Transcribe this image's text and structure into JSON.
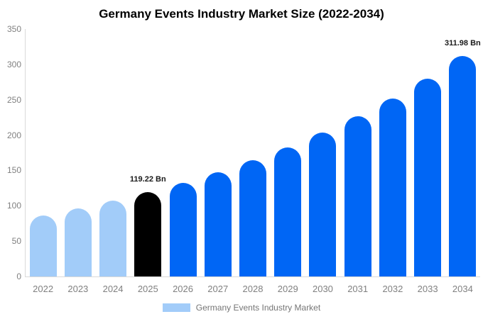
{
  "chart_data": {
    "type": "bar",
    "title": "Germany Events Industry Market Size (2022-2034)",
    "xlabel": "",
    "ylabel": "",
    "unit": "Bn",
    "categories": [
      "2022",
      "2023",
      "2024",
      "2025",
      "2026",
      "2027",
      "2028",
      "2029",
      "2030",
      "2031",
      "2032",
      "2033",
      "2034"
    ],
    "values": [
      86.5,
      96.3,
      107.1,
      119.22,
      132.7,
      147.7,
      164.3,
      182.8,
      203.4,
      226.4,
      251.9,
      280.3,
      311.98
    ],
    "series_name": "Germany Events Industry Market",
    "ylim": [
      0,
      350
    ],
    "yticks": [
      0,
      50,
      100,
      150,
      200,
      250,
      300,
      350
    ],
    "grid": false,
    "bar_colors": [
      "#a2ccf9",
      "#a2ccf9",
      "#a2ccf9",
      "#000000",
      "#0066f5",
      "#0066f5",
      "#0066f5",
      "#0066f5",
      "#0066f5",
      "#0066f5",
      "#0066f5",
      "#0066f5",
      "#0066f5"
    ],
    "data_labels": [
      {
        "year": "2025",
        "text": "119.22 Bn"
      },
      {
        "year": "2034",
        "text": "311.98 Bn"
      }
    ],
    "legend": {
      "label": "Germany Events Industry Market",
      "swatch_color": "#a2ccf9",
      "position": "bottom"
    },
    "colors": {
      "light_blue": "#a2ccf9",
      "blue": "#0066f5",
      "highlight_black": "#000000",
      "axis_line": "#d9d9d9",
      "tick_text": "#808080",
      "legend_text": "#757575",
      "data_label_text": "#1a1a1a",
      "title_text": "#000000",
      "background": "#ffffff"
    }
  }
}
